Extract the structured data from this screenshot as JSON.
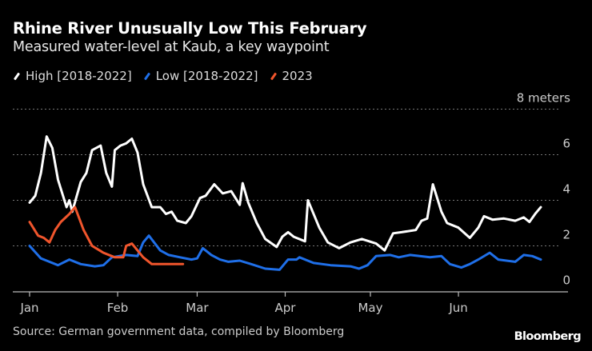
{
  "chart_data": {
    "type": "line",
    "title": "Rhine River Unusually Low This February",
    "subtitle": "Measured water-level at Kaub, a key waypoint",
    "ylabel_unit": "meters",
    "ylim": [
      0,
      8
    ],
    "yticks": [
      0,
      2,
      4,
      6,
      8
    ],
    "ytick_labels": [
      "0",
      "2",
      "4",
      "6",
      "8 meters"
    ],
    "xlim": [
      "01-01",
      "07-31"
    ],
    "xticks": [
      {
        "date": "01-01",
        "label": "Jan"
      },
      {
        "date": "02-01",
        "label": "Feb"
      },
      {
        "date": "03-01",
        "label": "Mar"
      },
      {
        "date": "04-01",
        "label": "Apr"
      },
      {
        "date": "05-01",
        "label": "May"
      },
      {
        "date": "06-01",
        "label": "Jun"
      }
    ],
    "grid": true,
    "legend_placement": "top-left",
    "series": [
      {
        "name": "High [2018-2022]",
        "color": "#ffffff",
        "points": [
          [
            "01-01",
            3.9
          ],
          [
            "01-03",
            4.2
          ],
          [
            "01-05",
            5.2
          ],
          [
            "01-07",
            6.8
          ],
          [
            "01-09",
            6.3
          ],
          [
            "01-11",
            4.9
          ],
          [
            "01-14",
            3.7
          ],
          [
            "01-15",
            4.0
          ],
          [
            "01-16",
            3.5
          ],
          [
            "01-19",
            4.8
          ],
          [
            "01-21",
            5.2
          ],
          [
            "01-23",
            6.2
          ],
          [
            "01-26",
            6.4
          ],
          [
            "01-28",
            5.2
          ],
          [
            "01-30",
            4.6
          ],
          [
            "01-31",
            6.2
          ],
          [
            "02-02",
            6.4
          ],
          [
            "02-04",
            6.5
          ],
          [
            "02-06",
            6.7
          ],
          [
            "02-08",
            6.1
          ],
          [
            "02-10",
            4.7
          ],
          [
            "02-13",
            3.7
          ],
          [
            "02-16",
            3.7
          ],
          [
            "02-18",
            3.4
          ],
          [
            "02-20",
            3.5
          ],
          [
            "02-22",
            3.1
          ],
          [
            "02-25",
            3.0
          ],
          [
            "02-27",
            3.3
          ],
          [
            "03-02",
            4.1
          ],
          [
            "03-04",
            4.2
          ],
          [
            "03-07",
            4.7
          ],
          [
            "03-10",
            4.3
          ],
          [
            "03-13",
            4.4
          ],
          [
            "03-16",
            3.8
          ],
          [
            "03-17",
            4.75
          ],
          [
            "03-19",
            3.9
          ],
          [
            "03-22",
            3.0
          ],
          [
            "03-25",
            2.3
          ],
          [
            "03-29",
            1.95
          ],
          [
            "03-31",
            2.4
          ],
          [
            "04-02",
            2.6
          ],
          [
            "04-04",
            2.4
          ],
          [
            "04-08",
            2.2
          ],
          [
            "04-09",
            4.0
          ],
          [
            "04-13",
            2.8
          ],
          [
            "04-16",
            2.15
          ],
          [
            "04-20",
            1.9
          ],
          [
            "04-24",
            2.15
          ],
          [
            "04-28",
            2.3
          ],
          [
            "05-03",
            2.1
          ],
          [
            "05-06",
            1.8
          ],
          [
            "05-09",
            2.55
          ],
          [
            "05-12",
            2.6
          ],
          [
            "05-17",
            2.7
          ],
          [
            "05-19",
            3.1
          ],
          [
            "05-21",
            3.2
          ],
          [
            "05-23",
            4.7
          ],
          [
            "05-26",
            3.5
          ],
          [
            "05-28",
            3.0
          ],
          [
            "06-01",
            2.8
          ],
          [
            "06-05",
            2.35
          ],
          [
            "06-08",
            2.8
          ],
          [
            "06-10",
            3.3
          ],
          [
            "06-13",
            3.15
          ],
          [
            "06-17",
            3.2
          ],
          [
            "06-21",
            3.1
          ],
          [
            "06-24",
            3.25
          ],
          [
            "06-26",
            3.05
          ],
          [
            "06-28",
            3.4
          ],
          [
            "06-30",
            3.7
          ]
        ]
      },
      {
        "name": "Low [2018-2022]",
        "color": "#1f6fe8",
        "points": [
          [
            "01-01",
            2.0
          ],
          [
            "01-05",
            1.45
          ],
          [
            "01-07",
            1.35
          ],
          [
            "01-11",
            1.15
          ],
          [
            "01-15",
            1.4
          ],
          [
            "01-19",
            1.2
          ],
          [
            "01-24",
            1.1
          ],
          [
            "01-27",
            1.15
          ],
          [
            "01-30",
            1.5
          ],
          [
            "02-04",
            1.6
          ],
          [
            "02-08",
            1.55
          ],
          [
            "02-10",
            2.15
          ],
          [
            "02-12",
            2.45
          ],
          [
            "02-16",
            1.8
          ],
          [
            "02-19",
            1.6
          ],
          [
            "02-23",
            1.5
          ],
          [
            "02-27",
            1.4
          ],
          [
            "03-01",
            1.45
          ],
          [
            "03-03",
            1.9
          ],
          [
            "03-06",
            1.6
          ],
          [
            "03-09",
            1.4
          ],
          [
            "03-12",
            1.3
          ],
          [
            "03-16",
            1.35
          ],
          [
            "03-20",
            1.2
          ],
          [
            "03-25",
            1.0
          ],
          [
            "03-30",
            0.95
          ],
          [
            "04-02",
            1.4
          ],
          [
            "04-05",
            1.4
          ],
          [
            "04-06",
            1.5
          ],
          [
            "04-11",
            1.25
          ],
          [
            "04-17",
            1.15
          ],
          [
            "04-24",
            1.1
          ],
          [
            "04-27",
            1.0
          ],
          [
            "04-30",
            1.15
          ],
          [
            "05-03",
            1.55
          ],
          [
            "05-08",
            1.6
          ],
          [
            "05-11",
            1.5
          ],
          [
            "05-15",
            1.6
          ],
          [
            "05-22",
            1.5
          ],
          [
            "05-26",
            1.55
          ],
          [
            "05-29",
            1.2
          ],
          [
            "06-02",
            1.05
          ],
          [
            "06-05",
            1.2
          ],
          [
            "06-08",
            1.4
          ],
          [
            "06-12",
            1.7
          ],
          [
            "06-15",
            1.4
          ],
          [
            "06-21",
            1.3
          ],
          [
            "06-24",
            1.6
          ],
          [
            "06-27",
            1.55
          ],
          [
            "06-30",
            1.4
          ]
        ]
      },
      {
        "name": "2023",
        "color": "#f0552c",
        "points": [
          [
            "01-01",
            3.05
          ],
          [
            "01-04",
            2.45
          ],
          [
            "01-06",
            2.35
          ],
          [
            "01-08",
            2.15
          ],
          [
            "01-10",
            2.7
          ],
          [
            "01-12",
            3.05
          ],
          [
            "01-15",
            3.4
          ],
          [
            "01-17",
            3.7
          ],
          [
            "01-20",
            2.7
          ],
          [
            "01-23",
            2.0
          ],
          [
            "01-27",
            1.7
          ],
          [
            "01-31",
            1.5
          ],
          [
            "02-03",
            1.5
          ],
          [
            "02-04",
            2.0
          ],
          [
            "02-06",
            2.1
          ],
          [
            "02-10",
            1.5
          ],
          [
            "02-13",
            1.2
          ],
          [
            "02-16",
            1.2
          ],
          [
            "02-20",
            1.2
          ],
          [
            "02-24",
            1.2
          ]
        ]
      }
    ]
  },
  "source": "Source: German government data, compiled by Bloomberg",
  "logo": "Bloomberg"
}
